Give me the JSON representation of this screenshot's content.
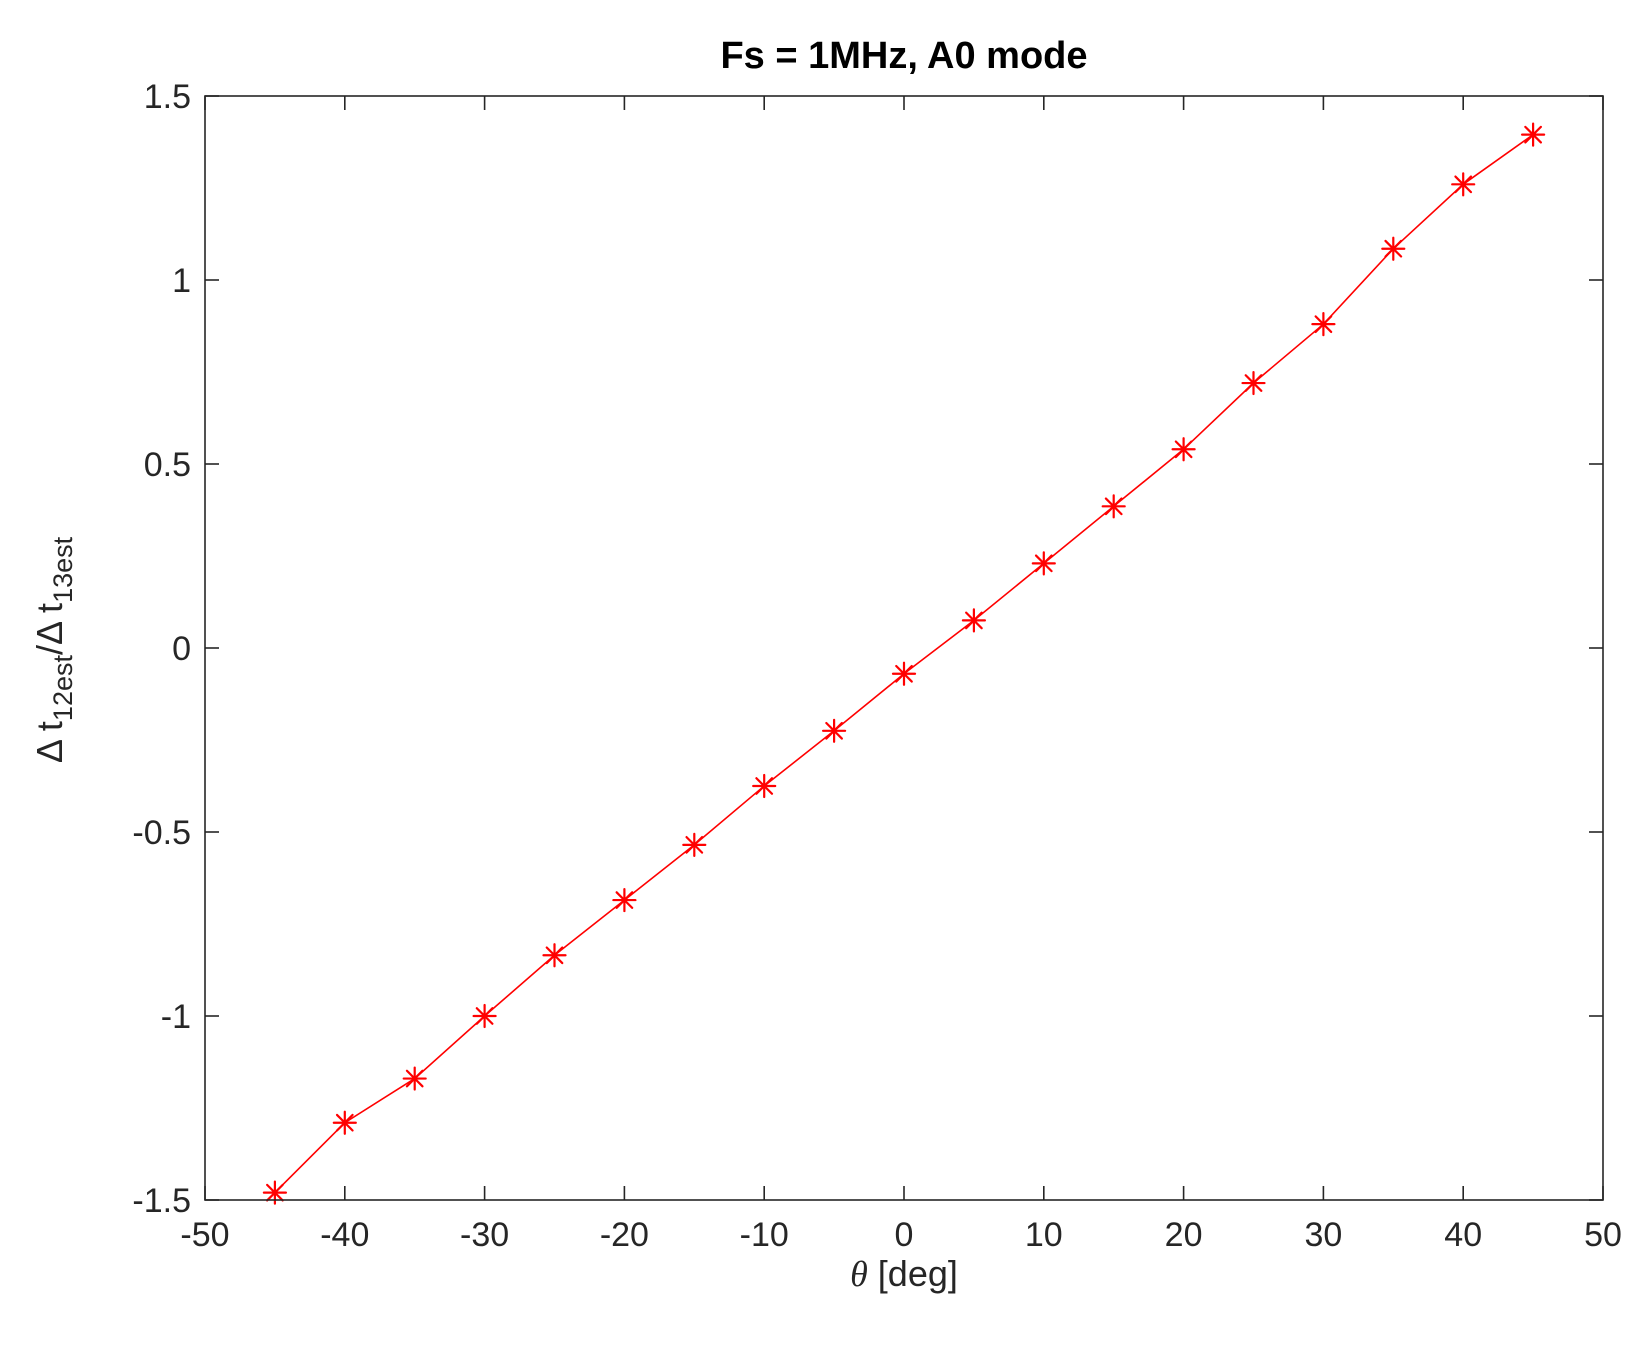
{
  "chart_data": {
    "type": "line",
    "title": "Fs = 1MHz, A0 mode",
    "xlabel": {
      "symbol": "θ",
      "text": " [deg]"
    },
    "ylabel": {
      "delta1": "Δ t",
      "sub1": "12est",
      "slash": "/",
      "delta2": "Δ t",
      "sub2": "13est"
    },
    "xlim": [
      -50,
      50
    ],
    "ylim": [
      -1.5,
      1.5
    ],
    "xticks": [
      -50,
      -40,
      -30,
      -20,
      -10,
      0,
      10,
      20,
      30,
      40,
      50
    ],
    "yticks": [
      -1.5,
      -1,
      -0.5,
      0,
      0.5,
      1,
      1.5
    ],
    "xtick_labels": [
      "-50",
      "-40",
      "-30",
      "-20",
      "-10",
      "0",
      "10",
      "20",
      "30",
      "40",
      "50"
    ],
    "ytick_labels": [
      "-1.5",
      "-1",
      "-0.5",
      "0",
      "0.5",
      "1",
      "1.5"
    ],
    "grid": false,
    "series": [
      {
        "color": "#ff0000",
        "marker": "asterisk",
        "x": [
          -45,
          -40,
          -35,
          -30,
          -25,
          -20,
          -15,
          -10,
          -5,
          0,
          5,
          10,
          15,
          20,
          25,
          30,
          35,
          40,
          45
        ],
        "y": [
          -1.48,
          -1.29,
          -1.17,
          -1.0,
          -0.835,
          -0.685,
          -0.535,
          -0.375,
          -0.225,
          -0.07,
          0.075,
          0.23,
          0.385,
          0.54,
          0.72,
          0.88,
          1.085,
          1.26,
          1.395
        ]
      }
    ]
  }
}
